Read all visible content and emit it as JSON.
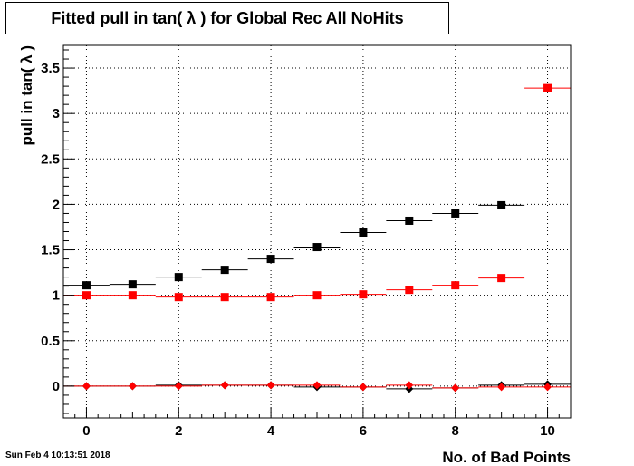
{
  "chart_data": {
    "type": "scatter",
    "title": "Fitted pull in tan( λ ) for Global Rec All NoHits",
    "xlabel": "No. of Bad Points",
    "ylabel": "pull in tan( λ )",
    "xlim": [
      -0.5,
      10.5
    ],
    "ylim": [
      -0.35,
      3.75
    ],
    "x_ticks": [
      "0",
      "2",
      "4",
      "6",
      "8",
      "10"
    ],
    "y_ticks": [
      "0",
      "0.5",
      "1",
      "1.5",
      "2",
      "2.5",
      "3",
      "3.5"
    ],
    "grid": true,
    "series": [
      {
        "marker": "square",
        "color": "#000000",
        "x": [
          0,
          1,
          2,
          3,
          4,
          5,
          6,
          7,
          8,
          9
        ],
        "y": [
          1.11,
          1.12,
          1.2,
          1.28,
          1.4,
          1.53,
          1.69,
          1.82,
          1.9,
          1.99
        ]
      },
      {
        "marker": "square",
        "color": "#ff0000",
        "x": [
          0,
          1,
          2,
          3,
          4,
          5,
          6,
          7,
          8,
          9,
          10
        ],
        "y": [
          1.0,
          1.0,
          0.98,
          0.98,
          0.98,
          1.0,
          1.01,
          1.06,
          1.11,
          1.19,
          3.28
        ]
      },
      {
        "marker": "diamond",
        "color": "#000000",
        "x": [
          0,
          1,
          2,
          3,
          4,
          5,
          6,
          7,
          8,
          9,
          10
        ],
        "y": [
          0.0,
          0.0,
          0.01,
          0.01,
          0.01,
          -0.01,
          -0.01,
          -0.03,
          -0.02,
          0.01,
          0.02
        ]
      },
      {
        "marker": "diamond",
        "color": "#ff0000",
        "x": [
          0,
          1,
          2,
          3,
          4,
          5,
          6,
          7,
          8,
          9,
          10
        ],
        "y": [
          0.0,
          0.0,
          0.0,
          0.01,
          0.01,
          0.01,
          -0.01,
          0.01,
          -0.02,
          -0.01,
          -0.01
        ]
      }
    ]
  },
  "footer": {
    "datestamp": "Sun Feb  4 10:13:51 2018"
  }
}
